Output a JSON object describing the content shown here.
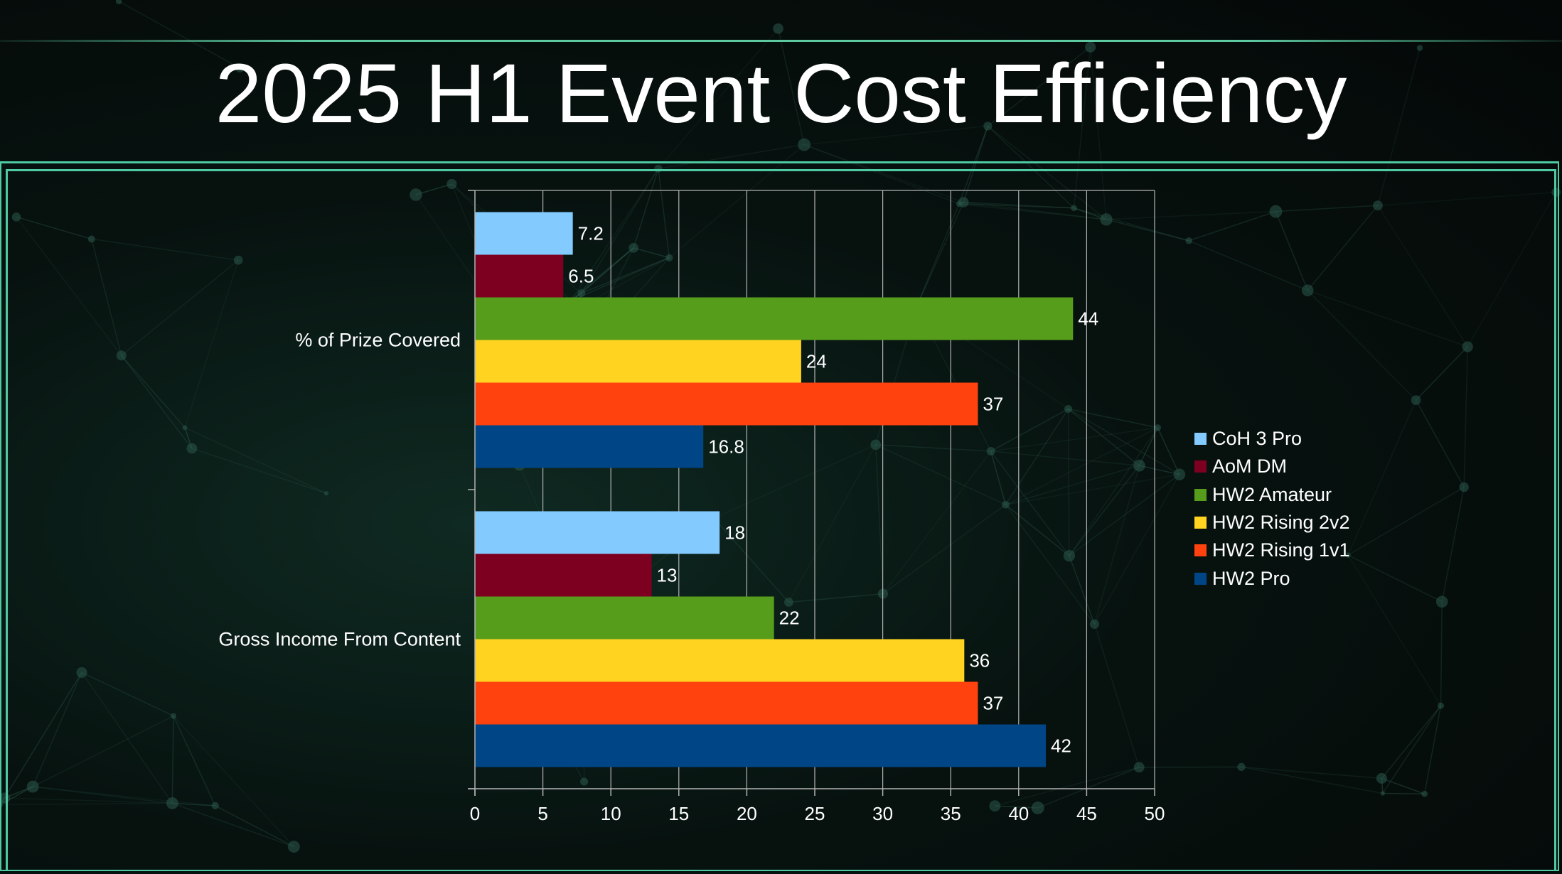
{
  "slide": {
    "title": "2025 H1 Event Cost Efficiency"
  },
  "chart_data": {
    "type": "bar",
    "orientation": "horizontal",
    "categories": [
      "% of Prize Covered",
      "Gross Income From Content"
    ],
    "series": [
      {
        "name": "CoH 3 Pro",
        "color": "#83caff",
        "values": [
          7.2,
          18
        ],
        "labels": [
          "7.2",
          "18"
        ]
      },
      {
        "name": "AoM DM",
        "color": "#7e0021",
        "values": [
          6.5,
          13
        ],
        "labels": [
          "6.5",
          "13"
        ]
      },
      {
        "name": "HW2 Amateur",
        "color": "#579d1c",
        "values": [
          44,
          22
        ],
        "labels": [
          "44",
          "22"
        ]
      },
      {
        "name": "HW2 Rising 2v2",
        "color": "#ffd320",
        "values": [
          24,
          36
        ],
        "labels": [
          "24",
          "36"
        ]
      },
      {
        "name": "HW2 Rising 1v1",
        "color": "#ff420e",
        "values": [
          37,
          37
        ],
        "labels": [
          "37",
          "37"
        ]
      },
      {
        "name": "HW2 Pro",
        "color": "#004586",
        "values": [
          16.8,
          42
        ],
        "labels": [
          "16.8",
          "42"
        ]
      }
    ],
    "xlim": [
      0,
      50
    ],
    "xticks": [
      0,
      5,
      10,
      15,
      20,
      25,
      30,
      35,
      40,
      45,
      50
    ],
    "xtick_labels": [
      "0",
      "5",
      "10",
      "15",
      "20",
      "25",
      "30",
      "35",
      "40",
      "45",
      "50"
    ],
    "grid": "vertical",
    "legend": "right",
    "xlabel": "",
    "ylabel": ""
  }
}
